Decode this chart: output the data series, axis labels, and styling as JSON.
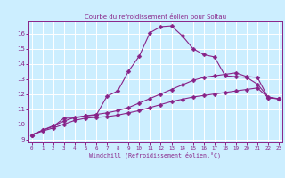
{
  "title": "Courbe du refroidissement éolien pour Soltau",
  "xlabel": "Windchill (Refroidissement éolien,°C)",
  "bg_color": "#cceeff",
  "grid_color": "#ffffff",
  "line_color": "#882288",
  "yticks": [
    9,
    10,
    11,
    12,
    13,
    14,
    15,
    16
  ],
  "xticks": [
    0,
    1,
    2,
    3,
    4,
    5,
    6,
    7,
    8,
    9,
    10,
    11,
    12,
    13,
    14,
    15,
    16,
    17,
    18,
    19,
    20,
    21,
    22,
    23
  ],
  "line1_x": [
    0,
    1,
    2,
    3,
    4,
    5,
    6,
    7,
    8,
    9,
    10,
    11,
    12,
    13,
    14,
    15,
    16,
    17,
    18,
    19,
    20,
    21,
    22,
    23
  ],
  "line1_y": [
    9.3,
    9.55,
    9.75,
    10.0,
    10.25,
    10.4,
    10.45,
    10.5,
    10.6,
    10.75,
    10.9,
    11.1,
    11.3,
    11.5,
    11.65,
    11.8,
    11.9,
    12.0,
    12.1,
    12.2,
    12.3,
    12.4,
    11.75,
    11.68
  ],
  "line2_x": [
    0,
    1,
    2,
    3,
    4,
    5,
    6,
    7,
    8,
    9,
    10,
    11,
    12,
    13,
    14,
    15,
    16,
    17,
    18,
    19,
    20,
    21,
    22,
    23
  ],
  "line2_y": [
    9.3,
    9.6,
    9.9,
    10.2,
    10.45,
    10.55,
    10.65,
    10.75,
    10.9,
    11.1,
    11.4,
    11.7,
    12.0,
    12.3,
    12.6,
    12.9,
    13.1,
    13.2,
    13.3,
    13.4,
    13.15,
    13.1,
    11.75,
    11.68
  ],
  "line3_x": [
    0,
    1,
    2,
    3,
    4,
    5,
    6,
    7,
    8,
    9,
    10,
    11,
    12,
    13,
    14,
    15,
    16,
    17,
    18,
    19,
    20,
    21,
    22,
    23
  ],
  "line3_y": [
    9.3,
    9.6,
    9.85,
    10.4,
    10.4,
    10.55,
    10.6,
    11.85,
    12.2,
    13.5,
    14.5,
    16.05,
    16.45,
    16.5,
    15.85,
    15.0,
    14.6,
    14.45,
    13.2,
    13.15,
    13.1,
    12.65,
    11.8,
    11.68
  ]
}
